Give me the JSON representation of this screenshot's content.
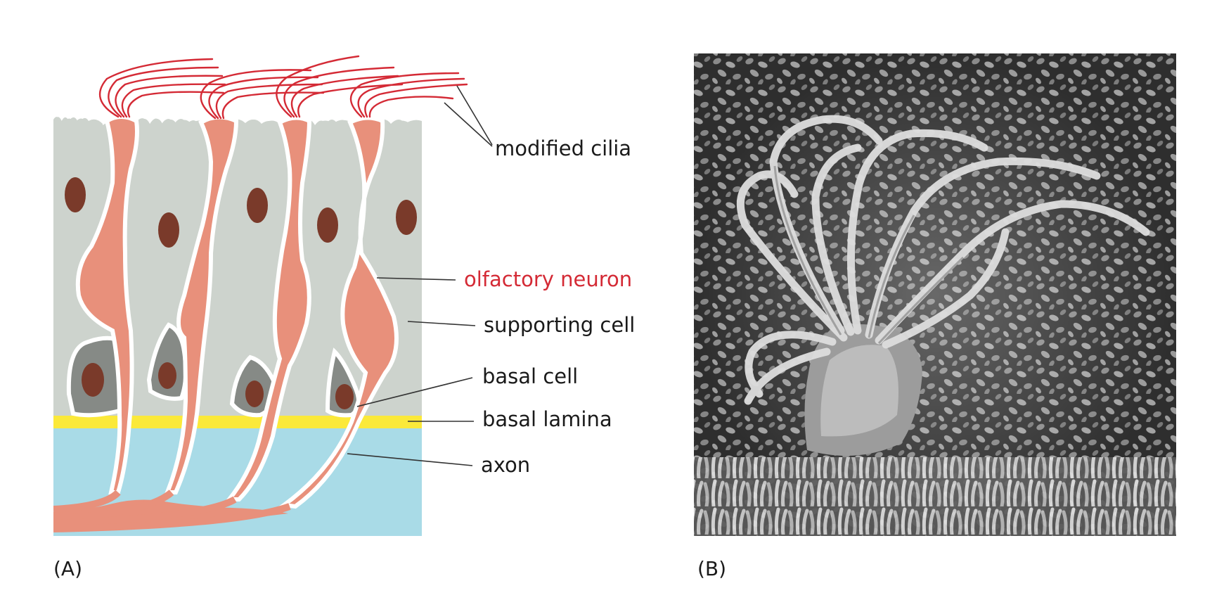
{
  "figure": {
    "panel_a": {
      "letter": "(A)",
      "labels": {
        "modified_cilia": "modified cilia",
        "olfactory_neuron": "olfactory neuron",
        "supporting_cell": "supporting cell",
        "basal_cell": "basal cell",
        "basal_lamina": "basal lamina",
        "axon": "axon"
      }
    },
    "panel_b": {
      "letter": "(B)"
    }
  },
  "colors": {
    "supporting_cell": "#cdd3cd",
    "neuron": "#e8907b",
    "cilia": "#d42a35",
    "nucleus": "#7a3a2a",
    "basal_cell": "#868a86",
    "basal_lamina": "#fbe93a",
    "connective_tissue": "#a9dbe7",
    "highlight_label": "#d42a35",
    "leader_line": "#333333"
  }
}
